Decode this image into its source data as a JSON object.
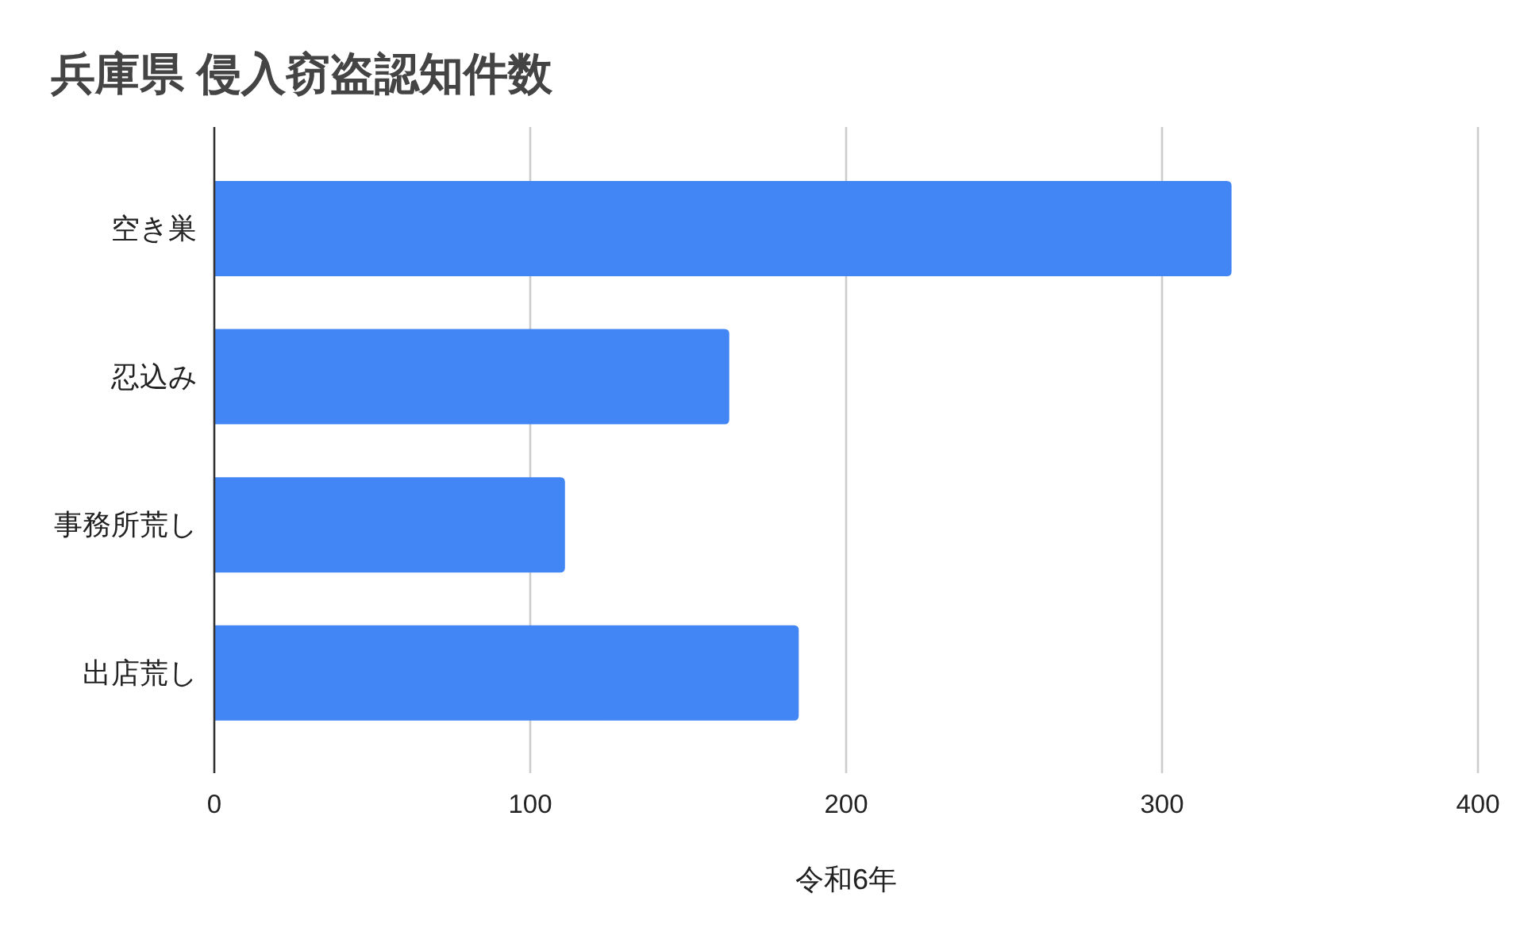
{
  "chart_data": {
    "type": "bar",
    "orientation": "horizontal",
    "title": "兵庫県 侵入窃盗認知件数",
    "xlabel": "令和6年",
    "categories": [
      "空き巣",
      "忍込み",
      "事務所荒し",
      "出店荒し"
    ],
    "values": [
      322,
      163,
      111,
      185
    ],
    "color": "#4285f4",
    "xlim": [
      0,
      400
    ],
    "xticks": [
      0,
      100,
      200,
      300,
      400
    ],
    "grid": "x"
  }
}
